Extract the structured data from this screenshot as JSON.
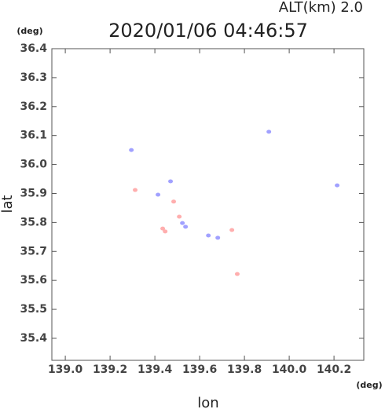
{
  "chart_data": {
    "type": "scatter",
    "title": "2020/01/06 04:46:57",
    "subtitle": "ALT(km) 2.0",
    "x_label": "lon",
    "y_label": "lat",
    "x_unit": "(deg)",
    "y_unit": "(deg)",
    "xlim": [
      138.94,
      140.333
    ],
    "ylim": [
      35.324,
      36.4
    ],
    "xticks": [
      {
        "value": 139.0,
        "label": "139.0"
      },
      139.2,
      139.4,
      139.6,
      139.8,
      {
        "value": 140.0,
        "label": "140.0"
      },
      140.2
    ],
    "yticks": [
      35.4,
      35.5,
      35.6,
      35.7,
      35.8,
      35.9,
      {
        "value": 36.0,
        "label": "36.0"
      },
      36.1,
      36.2,
      36.3,
      36.4
    ],
    "series": [
      {
        "color": "#8a8aff",
        "x": [
          139.295,
          139.909,
          140.214,
          139.414,
          139.47,
          139.523,
          139.537,
          139.639,
          139.681
        ],
        "values": [
          36.05,
          36.113,
          35.928,
          35.896,
          35.942,
          35.798,
          35.785,
          35.755,
          35.747
        ]
      },
      {
        "color": "#ff9a9a",
        "x": [
          139.312,
          139.484,
          139.509,
          139.435,
          139.446,
          139.744,
          139.768
        ],
        "values": [
          35.912,
          35.872,
          35.82,
          35.779,
          35.769,
          35.774,
          35.622
        ]
      }
    ]
  }
}
